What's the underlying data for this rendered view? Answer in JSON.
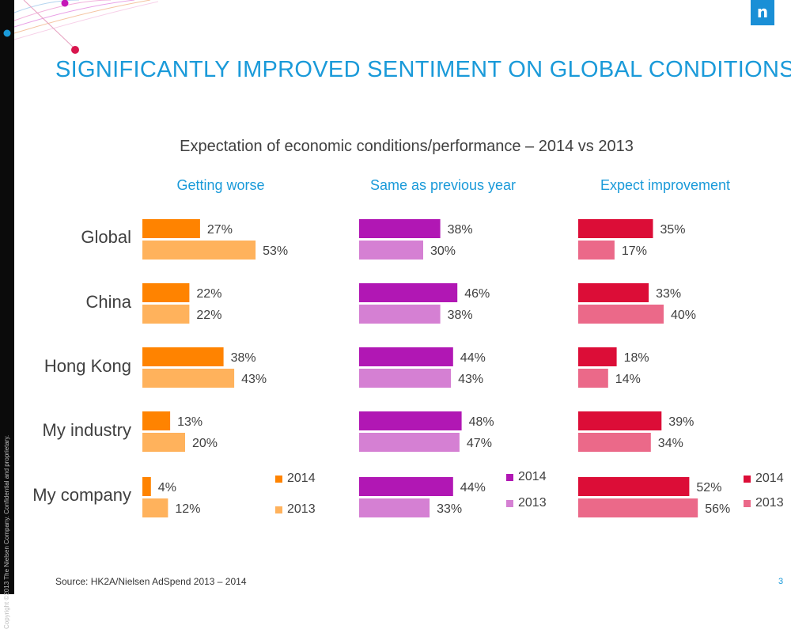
{
  "slide": {
    "title": "SIGNIFICANTLY IMPROVED SENTIMENT ON GLOBAL CONDITIONS",
    "copyright": "Copyright ©2013 The Nielsen Company. Confidential and proprietary.",
    "logo": "n",
    "source": "Source: HK2A/Nielsen AdSpend 2013 – 2014",
    "page_number": "3"
  },
  "chart_data": {
    "type": "bar",
    "orientation": "horizontal",
    "title": "Expectation of economic conditions/performance – 2014 vs 2013",
    "categories": [
      "Global",
      "China",
      "Hong Kong",
      "My industry",
      "My company"
    ],
    "groups": [
      {
        "name": "Getting worse",
        "colors": {
          "2014": "#ff8300",
          "2013": "#ffb25c"
        },
        "series": [
          {
            "name": "2014",
            "values": [
              27,
              22,
              38,
              13,
              4
            ]
          },
          {
            "name": "2013",
            "values": [
              53,
              22,
              43,
              20,
              12
            ]
          }
        ]
      },
      {
        "name": "Same as previous year",
        "colors": {
          "2014": "#b117b4",
          "2013": "#d580d3"
        },
        "series": [
          {
            "name": "2014",
            "values": [
              38,
              46,
              44,
              48,
              44
            ]
          },
          {
            "name": "2013",
            "values": [
              30,
              38,
              43,
              47,
              33
            ]
          }
        ]
      },
      {
        "name": "Expect improvement",
        "colors": {
          "2014": "#dc0d37",
          "2013": "#eb6989"
        },
        "series": [
          {
            "name": "2014",
            "values": [
              35,
              33,
              18,
              39,
              52
            ]
          },
          {
            "name": "2013",
            "values": [
              17,
              40,
              14,
              34,
              56
            ]
          }
        ]
      }
    ],
    "unit": "%",
    "legend": [
      "2014",
      "2013"
    ]
  },
  "colors": {
    "title": "#1a9ad9",
    "group_header": "#1a9ad9",
    "text": "#404040"
  }
}
